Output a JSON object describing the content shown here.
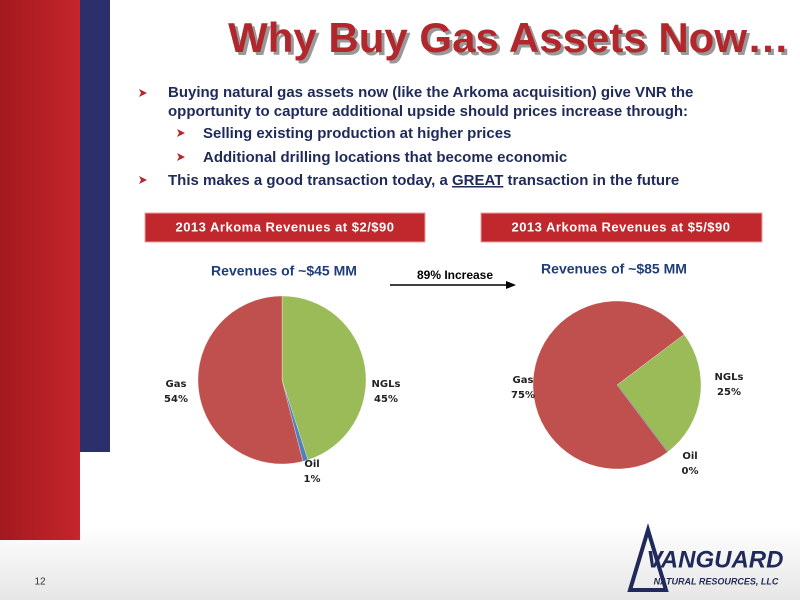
{
  "slide": {
    "title": "Why Buy Gas Assets Now…",
    "bullets": [
      {
        "text": "Buying natural gas assets now  (like the Arkoma acquisition) give VNR the",
        "text2": "opportunity to capture additional upside should prices increase through:",
        "sub": [
          "Selling existing production at higher prices",
          "Additional drilling locations that become economic"
        ]
      },
      {
        "parts": [
          "This makes a good transaction today, a ",
          "GREAT",
          " transaction in the future"
        ]
      }
    ],
    "boxes": [
      "2013 Arkoma Revenues at $2/$90",
      "2013 Arkoma Revenues at $5/$90"
    ],
    "increase": "89% Increase",
    "page_number": "12",
    "logo": {
      "name": "VANGUARD",
      "sub": "NATURAL RESOURCES, LLC"
    }
  },
  "chart_data": [
    {
      "type": "pie",
      "title": "Revenues of ~$45 MM",
      "categories": [
        "NGLs",
        "Oil",
        "Gas"
      ],
      "values": [
        45,
        1,
        54
      ],
      "value_labels": [
        "45%",
        "1%",
        "54%"
      ],
      "colors": [
        "#9bbb59",
        "#4f81bd",
        "#c0504d"
      ]
    },
    {
      "type": "pie",
      "title": "Revenues of ~$85 MM",
      "categories": [
        "NGLs",
        "Oil",
        "Gas"
      ],
      "values": [
        25,
        0,
        75
      ],
      "value_labels": [
        "25%",
        "0%",
        "75%"
      ],
      "colors": [
        "#9bbb59",
        "#4f81bd",
        "#c0504d"
      ]
    }
  ]
}
